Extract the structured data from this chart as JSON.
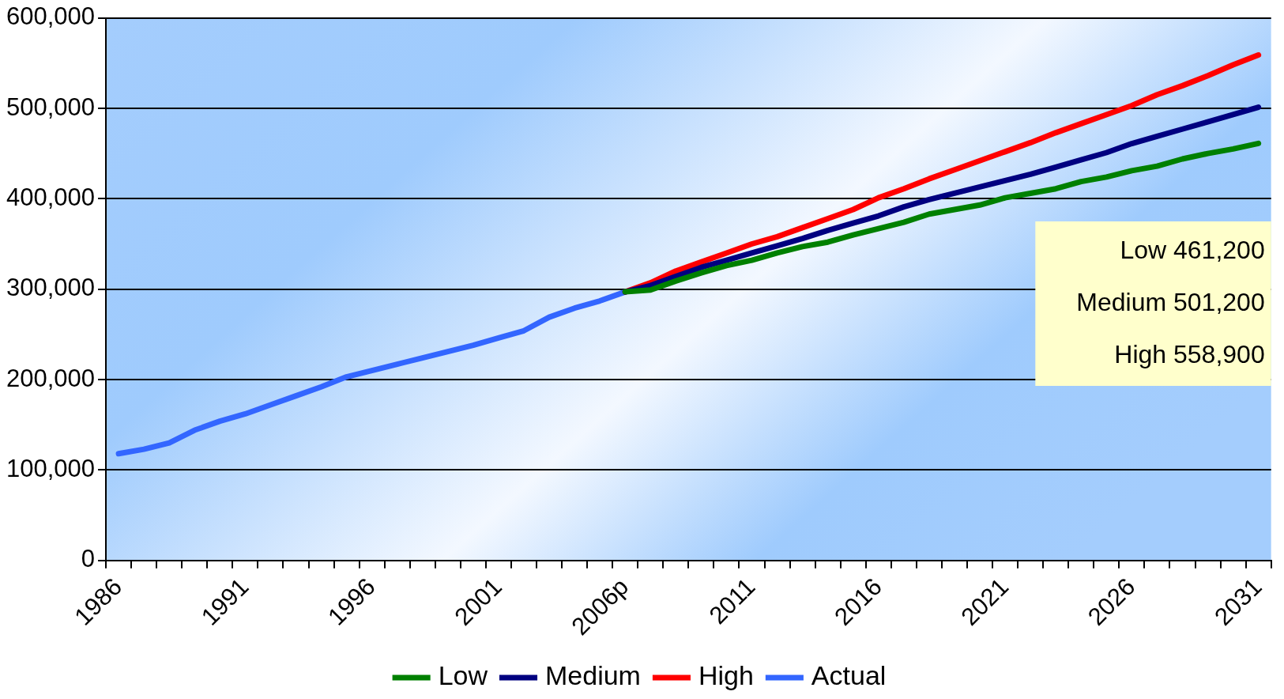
{
  "chart_data": {
    "type": "line",
    "categories": [
      "1986",
      null,
      null,
      null,
      null,
      "1991",
      null,
      null,
      null,
      null,
      "1996",
      null,
      null,
      null,
      null,
      "2001",
      null,
      null,
      null,
      null,
      "2006p",
      null,
      null,
      null,
      null,
      "2011",
      null,
      null,
      null,
      null,
      "2016",
      null,
      null,
      null,
      null,
      "2021",
      null,
      null,
      null,
      null,
      "2026",
      null,
      null,
      null,
      null,
      "2031"
    ],
    "series": [
      {
        "name": "Low",
        "color": "#008000",
        "values": [
          null,
          null,
          null,
          null,
          null,
          null,
          null,
          null,
          null,
          null,
          null,
          null,
          null,
          null,
          null,
          null,
          null,
          null,
          null,
          null,
          297000,
          299000,
          309000,
          318000,
          326000,
          332000,
          340000,
          347000,
          352000,
          360000,
          367000,
          374000,
          383000,
          388000,
          393000,
          401000,
          406000,
          411000,
          419000,
          424000,
          431000,
          436000,
          444000,
          450000,
          455000,
          461200
        ]
      },
      {
        "name": "Medium",
        "color": "#000080",
        "values": [
          null,
          null,
          null,
          null,
          null,
          null,
          null,
          null,
          null,
          null,
          null,
          null,
          null,
          null,
          null,
          null,
          null,
          null,
          null,
          null,
          297000,
          304000,
          314000,
          324000,
          332000,
          340000,
          348000,
          356000,
          365000,
          373000,
          381000,
          391000,
          399000,
          406000,
          413000,
          420000,
          427000,
          435000,
          443000,
          451000,
          461000,
          469000,
          477000,
          485000,
          493000,
          501200
        ]
      },
      {
        "name": "High",
        "color": "#ff0000",
        "values": [
          null,
          null,
          null,
          null,
          null,
          null,
          null,
          null,
          null,
          null,
          null,
          null,
          null,
          null,
          null,
          null,
          null,
          null,
          null,
          null,
          297000,
          307000,
          320000,
          330000,
          340000,
          350000,
          358000,
          368000,
          378000,
          388000,
          401000,
          411000,
          422000,
          432000,
          442000,
          452000,
          462000,
          473000,
          483000,
          493000,
          503000,
          515000,
          525000,
          536000,
          548000,
          558900
        ]
      },
      {
        "name": "Actual",
        "color": "#3366ff",
        "values": [
          118000,
          123000,
          130000,
          144000,
          154000,
          162000,
          172000,
          182000,
          192000,
          203000,
          210000,
          217000,
          224000,
          231000,
          238000,
          246000,
          254000,
          269000,
          279000,
          287000,
          297000,
          null,
          null,
          null,
          null,
          null,
          null,
          null,
          null,
          null,
          null,
          null,
          null,
          null,
          null,
          null,
          null,
          null,
          null,
          null,
          null,
          null,
          null,
          null,
          null,
          null
        ]
      }
    ],
    "ylim": [
      0,
      600000
    ],
    "yticks": [
      {
        "value": 0,
        "label": "0"
      },
      {
        "value": 100000,
        "label": "100,000"
      },
      {
        "value": 200000,
        "label": "200,000"
      },
      {
        "value": 300000,
        "label": "300,000"
      },
      {
        "value": 400000,
        "label": "400,000"
      },
      {
        "value": 500000,
        "label": "500,000"
      },
      {
        "value": 600000,
        "label": "600,000"
      }
    ],
    "grid": "y",
    "legend": "bottom",
    "marker": "none",
    "line_style": "solid",
    "annotations": [
      "Low 461,200",
      "Medium 501,200",
      "High 558,900"
    ]
  }
}
